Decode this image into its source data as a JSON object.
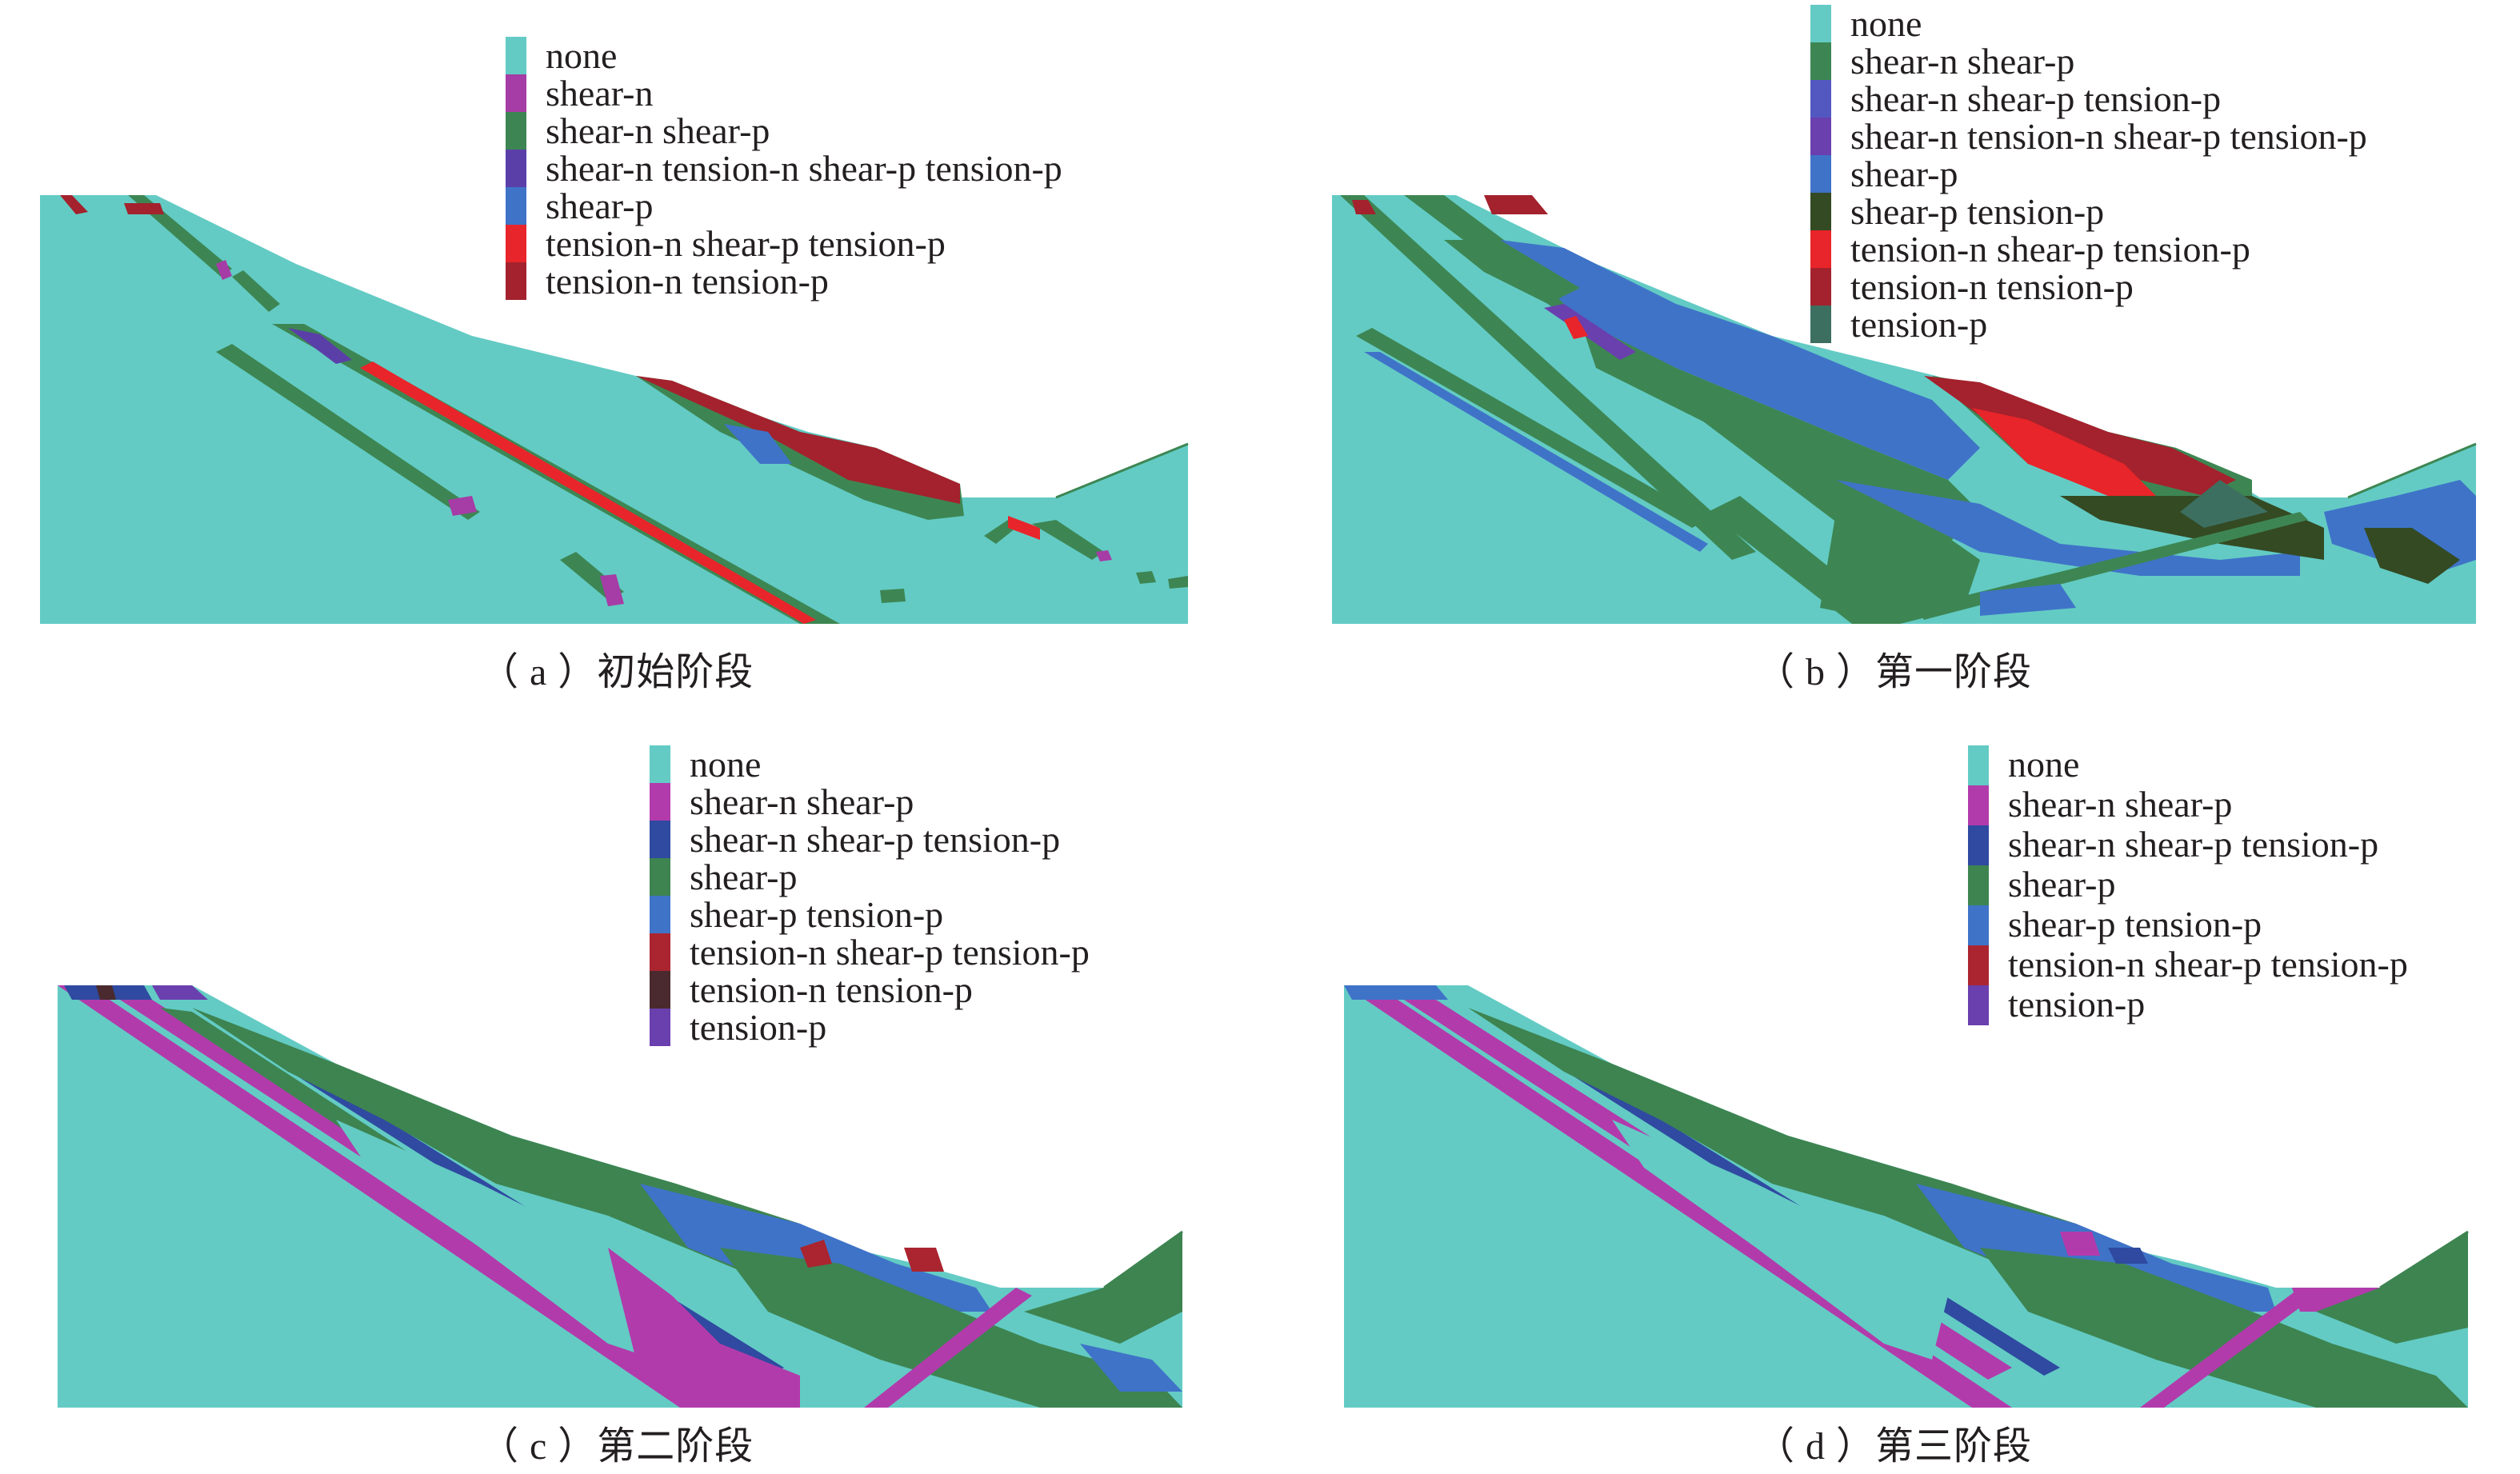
{
  "colors": {
    "none": "#63cbc4",
    "shear_n": "#a63ca5",
    "shear_n_shear_p": "#3d8653",
    "shear_n_tension_n_shear_p_tension_p": "#5b3fa8",
    "shear_p": "#3f73c8",
    "tension_n_shear_p_tension_p": "#e8252a",
    "tension_n_tension_p": "#a3222d",
    "b_shear_n_shear_p_tension_p": "#5358c0",
    "b_shear_n_tension_n_shear_p_tension_p": "#6a3fae",
    "b_shear_p_tension_p": "#344a22",
    "b_tension_p": "#3d6f60",
    "c_shear_n_shear_p": "#b23bab",
    "c_shear_n_shear_p_tension_p": "#2f4aa0",
    "c_shear_p": "#3d8451",
    "c_shear_p_tension_p": "#3f73c8",
    "c_tension_n_shear_p_tension_p": "#aa2530",
    "c_tension_n_tension_p": "#4a2a2e",
    "c_tension_p": "#6a3fae"
  },
  "panels": [
    {
      "id": "a",
      "caption": "（ a ）初始阶段",
      "legend": [
        {
          "label": "none",
          "color": "#63cbc4"
        },
        {
          "label": "shear-n",
          "color": "#a63ca5"
        },
        {
          "label": "shear-n shear-p",
          "color": "#3d8653"
        },
        {
          "label": "shear-n tension-n shear-p tension-p",
          "color": "#5b3fa8"
        },
        {
          "label": "shear-p",
          "color": "#3f73c8"
        },
        {
          "label": "tension-n shear-p tension-p",
          "color": "#e8252a"
        },
        {
          "label": "tension-n tension-p",
          "color": "#a3222d"
        }
      ]
    },
    {
      "id": "b",
      "caption": "（ b ）第一阶段",
      "legend": [
        {
          "label": "none",
          "color": "#63cbc4"
        },
        {
          "label": "shear-n shear-p",
          "color": "#3d8653"
        },
        {
          "label": "shear-n shear-p tension-p",
          "color": "#5358c0"
        },
        {
          "label": "shear-n tension-n shear-p tension-p",
          "color": "#6a3fae"
        },
        {
          "label": "shear-p",
          "color": "#3f73c8"
        },
        {
          "label": "shear-p tension-p",
          "color": "#344a22"
        },
        {
          "label": "tension-n shear-p tension-p",
          "color": "#e8252a"
        },
        {
          "label": "tension-n tension-p",
          "color": "#a3222d"
        },
        {
          "label": "tension-p",
          "color": "#3d6f60"
        }
      ]
    },
    {
      "id": "c",
      "caption": "（ c ）第二阶段",
      "legend": [
        {
          "label": "none",
          "color": "#63cbc4"
        },
        {
          "label": "shear-n shear-p",
          "color": "#b23bab"
        },
        {
          "label": "shear-n shear-p tension-p",
          "color": "#2f4aa0"
        },
        {
          "label": "shear-p",
          "color": "#3d8451"
        },
        {
          "label": "shear-p tension-p",
          "color": "#3f73c8"
        },
        {
          "label": "tension-n shear-p tension-p",
          "color": "#aa2530"
        },
        {
          "label": "tension-n tension-p",
          "color": "#4a2a2e"
        },
        {
          "label": "tension-p",
          "color": "#6a3fae"
        }
      ]
    },
    {
      "id": "d",
      "caption": "（ d ）第三阶段",
      "legend": [
        {
          "label": "none",
          "color": "#63cbc4"
        },
        {
          "label": "shear-n shear-p",
          "color": "#b23bab"
        },
        {
          "label": "shear-n shear-p tension-p",
          "color": "#2f4aa0"
        },
        {
          "label": "shear-p",
          "color": "#3d8451"
        },
        {
          "label": "shear-p tension-p",
          "color": "#3f73c8"
        },
        {
          "label": "tension-n shear-p tension-p",
          "color": "#aa2530"
        },
        {
          "label": "tension-p",
          "color": "#6a3fae"
        }
      ]
    }
  ]
}
